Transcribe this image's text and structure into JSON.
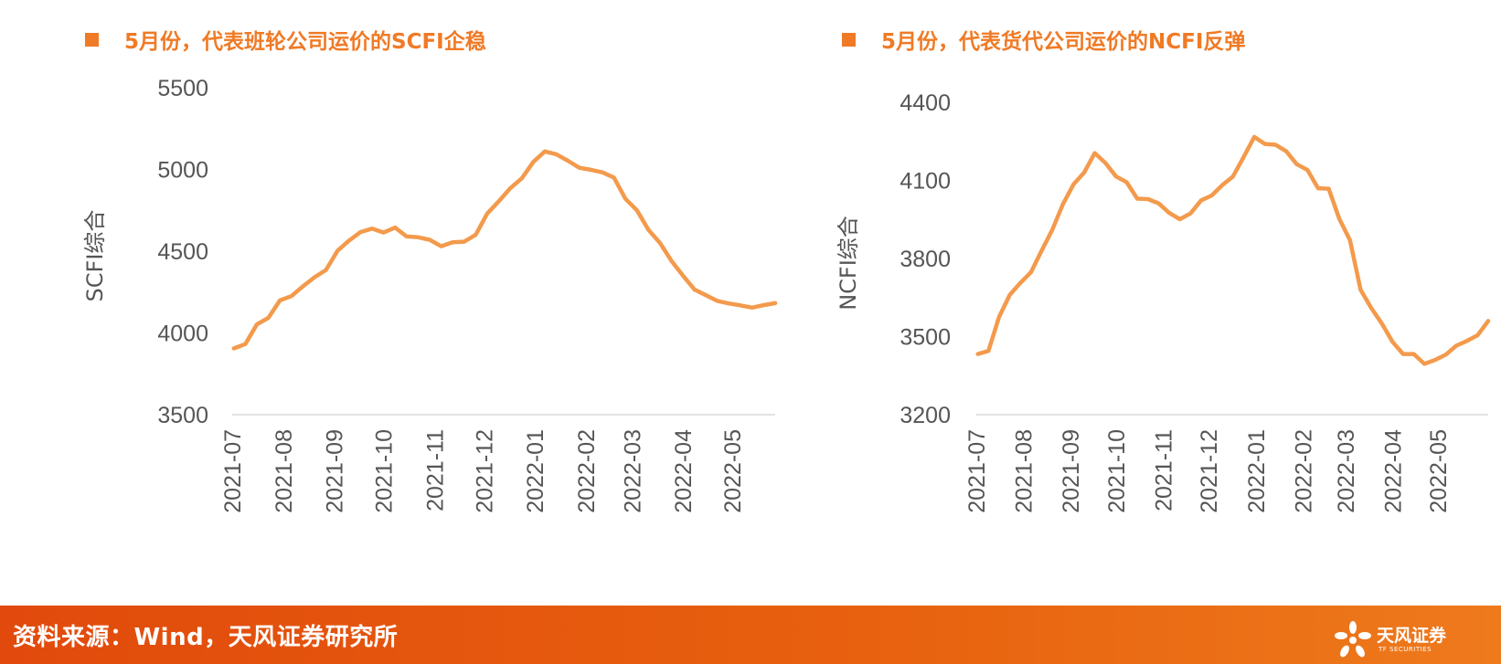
{
  "titles": {
    "left": "5月份，代表班轮公司运价的SCFI企稳",
    "right": "5月份，代表货代公司运价的NCFI反弹"
  },
  "colors": {
    "accent": "#f07a25",
    "line": "#f39a4c",
    "footer": "#e8620f"
  },
  "footer": {
    "source": "资料来源：Wind，天风证券研究所",
    "logo_name": "天风证券",
    "logo_en": "TF SECURITIES"
  },
  "chart_data": [
    {
      "type": "line",
      "ylabel": "SCFI综合",
      "xlabel": "",
      "ylim": [
        3500,
        5500
      ],
      "yticks": [
        3500,
        4000,
        4500,
        5000,
        5500
      ],
      "xticks": [
        "2021-07",
        "2021-08",
        "2021-09",
        "2021-10",
        "2021-11",
        "2021-12",
        "2022-01",
        "2022-02",
        "2022-03",
        "2022-04",
        "2022-05"
      ],
      "grid": false,
      "x": [
        "2021-07-02",
        "2021-07-09",
        "2021-07-16",
        "2021-07-23",
        "2021-07-30",
        "2021-08-06",
        "2021-08-13",
        "2021-08-20",
        "2021-08-27",
        "2021-09-03",
        "2021-09-10",
        "2021-09-17",
        "2021-09-24",
        "2021-10-01",
        "2021-10-08",
        "2021-10-15",
        "2021-10-22",
        "2021-10-29",
        "2021-11-05",
        "2021-11-12",
        "2021-11-19",
        "2021-11-26",
        "2021-12-03",
        "2021-12-10",
        "2021-12-17",
        "2021-12-24",
        "2021-12-31",
        "2022-01-07",
        "2022-01-14",
        "2022-01-21",
        "2022-01-28",
        "2022-02-04",
        "2022-02-11",
        "2022-02-18",
        "2022-02-25",
        "2022-03-04",
        "2022-03-11",
        "2022-03-18",
        "2022-03-25",
        "2022-04-01",
        "2022-04-08",
        "2022-04-15",
        "2022-04-22",
        "2022-04-29",
        "2022-05-06",
        "2022-05-13",
        "2022-05-20",
        "2022-05-27"
      ],
      "series": [
        {
          "values": [
            3905,
            3932,
            4052,
            4092,
            4199,
            4225,
            4285,
            4340,
            4385,
            4502,
            4565,
            4617,
            4638,
            4614,
            4644,
            4590,
            4585,
            4570,
            4530,
            4555,
            4558,
            4600,
            4730,
            4805,
            4885,
            4945,
            5046,
            5110,
            5093,
            5053,
            5010,
            4998,
            4982,
            4950,
            4820,
            4750,
            4630,
            4550,
            4440,
            4350,
            4265,
            4230,
            4195,
            4180,
            4168,
            4155,
            4170,
            4182
          ]
        }
      ]
    },
    {
      "type": "line",
      "ylabel": "NCFI综合",
      "xlabel": "",
      "ylim": [
        3200,
        4400
      ],
      "yticks": [
        3200,
        3500,
        3800,
        4100,
        4400
      ],
      "xticks": [
        "2021-07",
        "2021-08",
        "2021-09",
        "2021-10",
        "2021-11",
        "2021-12",
        "2022-01",
        "2022-02",
        "2022-03",
        "2022-04",
        "2022-05"
      ],
      "grid": false,
      "x": [
        "2021-07-02",
        "2021-07-09",
        "2021-07-16",
        "2021-07-23",
        "2021-07-30",
        "2021-08-06",
        "2021-08-13",
        "2021-08-20",
        "2021-08-27",
        "2021-09-03",
        "2021-09-10",
        "2021-09-17",
        "2021-09-24",
        "2021-10-01",
        "2021-10-08",
        "2021-10-15",
        "2021-10-22",
        "2021-10-29",
        "2021-11-05",
        "2021-11-12",
        "2021-11-19",
        "2021-11-26",
        "2021-12-03",
        "2021-12-10",
        "2021-12-17",
        "2021-12-24",
        "2021-12-31",
        "2022-01-07",
        "2022-01-14",
        "2022-01-21",
        "2022-01-28",
        "2022-02-04",
        "2022-02-11",
        "2022-02-18",
        "2022-02-25",
        "2022-03-04",
        "2022-03-11",
        "2022-03-18",
        "2022-03-25",
        "2022-04-01",
        "2022-04-08",
        "2022-04-15",
        "2022-04-22",
        "2022-04-29",
        "2022-05-06",
        "2022-05-13",
        "2022-05-20",
        "2022-05-27",
        "2022-06-03"
      ],
      "series": [
        {
          "values": [
            3433,
            3445,
            3575,
            3660,
            3706,
            3747,
            3830,
            3910,
            4008,
            4085,
            4130,
            4205,
            4167,
            4115,
            4093,
            4030,
            4028,
            4012,
            3975,
            3951,
            3973,
            4023,
            4042,
            4082,
            4115,
            4190,
            4267,
            4240,
            4237,
            4212,
            4162,
            4140,
            4070,
            4068,
            3952,
            3870,
            3680,
            3610,
            3550,
            3480,
            3433,
            3433,
            3395,
            3410,
            3430,
            3465,
            3483,
            3505,
            3560
          ]
        }
      ]
    }
  ]
}
